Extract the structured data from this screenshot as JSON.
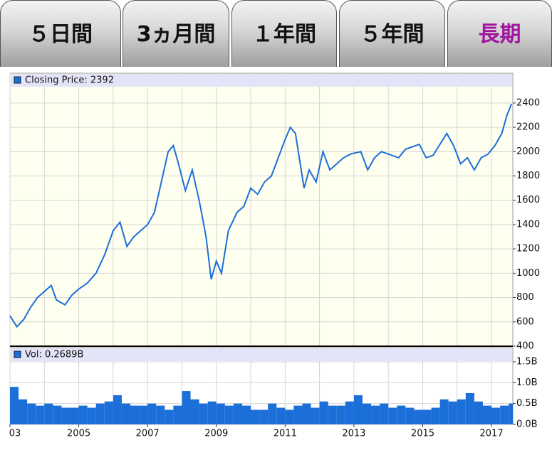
{
  "tabs": [
    {
      "label": "５日間"
    },
    {
      "label": "3ヵ月間"
    },
    {
      "label": "１年間"
    },
    {
      "label": "５年間"
    },
    {
      "label": "長期"
    }
  ],
  "selected_tab": 4,
  "chart_data": [
    {
      "type": "line",
      "x": [
        2003.0,
        2003.2,
        2003.4,
        2003.6,
        2003.8,
        2004.0,
        2004.2,
        2004.35,
        2004.6,
        2004.8,
        2005.0,
        2005.25,
        2005.5,
        2005.75,
        2006.0,
        2006.2,
        2006.4,
        2006.6,
        2006.8,
        2007.0,
        2007.2,
        2007.4,
        2007.6,
        2007.75,
        2007.9,
        2008.1,
        2008.3,
        2008.5,
        2008.7,
        2008.85,
        2009.0,
        2009.15,
        2009.35,
        2009.6,
        2009.8,
        2010.0,
        2010.2,
        2010.4,
        2010.6,
        2010.8,
        2011.0,
        2011.15,
        2011.3,
        2011.55,
        2011.7,
        2011.9,
        2012.1,
        2012.3,
        2012.5,
        2012.7,
        2012.9,
        2013.2,
        2013.4,
        2013.6,
        2013.8,
        2014.0,
        2014.3,
        2014.5,
        2014.7,
        2014.9,
        2015.1,
        2015.3,
        2015.5,
        2015.7,
        2015.9,
        2016.1,
        2016.3,
        2016.5,
        2016.7,
        2016.9,
        2017.1,
        2017.3,
        2017.45,
        2017.58
      ],
      "series": [
        {
          "name": "Closing Price: 2392",
          "color": "#1c6fd8",
          "values": [
            650,
            560,
            620,
            720,
            800,
            850,
            900,
            780,
            740,
            820,
            870,
            920,
            1000,
            1150,
            1350,
            1420,
            1220,
            1300,
            1350,
            1400,
            1500,
            1750,
            2000,
            2050,
            1900,
            1680,
            1850,
            1600,
            1300,
            950,
            1100,
            1000,
            1350,
            1500,
            1550,
            1700,
            1650,
            1750,
            1800,
            1950,
            2100,
            2200,
            2150,
            1700,
            1850,
            1750,
            2000,
            1850,
            1900,
            1950,
            1980,
            2000,
            1850,
            1950,
            2000,
            1980,
            1950,
            2020,
            2040,
            2060,
            1950,
            1970,
            2060,
            2150,
            2050,
            1900,
            1950,
            1850,
            1950,
            1980,
            2050,
            2150,
            2300,
            2392
          ]
        }
      ],
      "xlim": [
        2003,
        2017.62
      ],
      "ylim": [
        400,
        2645
      ],
      "yticks": [
        400,
        600,
        800,
        1000,
        1200,
        1400,
        1600,
        1800,
        2000,
        2200,
        2400
      ],
      "x_gridlines": [
        2003,
        2004,
        2005,
        2006,
        2007,
        2008,
        2009,
        2010,
        2011,
        2012,
        2013,
        2014,
        2015,
        2016,
        2017
      ],
      "grid": true
    },
    {
      "type": "bar",
      "x": [
        2003,
        2003.25,
        2003.5,
        2003.75,
        2004,
        2004.25,
        2004.5,
        2004.75,
        2005,
        2005.25,
        2005.5,
        2005.75,
        2006,
        2006.25,
        2006.5,
        2006.75,
        2007,
        2007.25,
        2007.5,
        2007.75,
        2008,
        2008.25,
        2008.5,
        2008.75,
        2009,
        2009.25,
        2009.5,
        2009.75,
        2010,
        2010.25,
        2010.5,
        2010.75,
        2011,
        2011.25,
        2011.5,
        2011.75,
        2012,
        2012.25,
        2012.5,
        2012.75,
        2013,
        2013.25,
        2013.5,
        2013.75,
        2014,
        2014.25,
        2014.5,
        2014.75,
        2015,
        2015.25,
        2015.5,
        2015.75,
        2016,
        2016.25,
        2016.5,
        2016.75,
        2017,
        2017.25,
        2017.5
      ],
      "series": [
        {
          "name": "Vol: 0.2689B",
          "color": "#1c6fd8",
          "values": [
            0.9,
            0.6,
            0.5,
            0.45,
            0.5,
            0.45,
            0.4,
            0.4,
            0.45,
            0.4,
            0.5,
            0.55,
            0.7,
            0.5,
            0.45,
            0.45,
            0.5,
            0.45,
            0.35,
            0.45,
            0.8,
            0.6,
            0.5,
            0.55,
            0.5,
            0.45,
            0.5,
            0.45,
            0.35,
            0.35,
            0.5,
            0.4,
            0.35,
            0.45,
            0.5,
            0.4,
            0.55,
            0.45,
            0.45,
            0.55,
            0.7,
            0.5,
            0.45,
            0.5,
            0.4,
            0.45,
            0.4,
            0.35,
            0.35,
            0.4,
            0.6,
            0.55,
            0.6,
            0.75,
            0.55,
            0.45,
            0.4,
            0.45,
            0.5
          ]
        }
      ],
      "xlim": [
        2003,
        2017.62
      ],
      "ylim": [
        0,
        1.84
      ],
      "yticks": [
        {
          "value": 0,
          "label": "0.0B"
        },
        {
          "value": 0.5,
          "label": "0.5B"
        },
        {
          "value": 1,
          "label": "1.0B"
        },
        {
          "value": 1.5,
          "label": "1.5B"
        }
      ],
      "xticks": [
        {
          "value": 2003,
          "label": "03"
        },
        2005,
        2007,
        2009,
        2011,
        2013,
        2015,
        2017
      ],
      "x_gridlines": [
        2003,
        2004,
        2005,
        2006,
        2007,
        2008,
        2009,
        2010,
        2011,
        2012,
        2013,
        2014,
        2015,
        2016,
        2017
      ],
      "grid": true
    }
  ]
}
